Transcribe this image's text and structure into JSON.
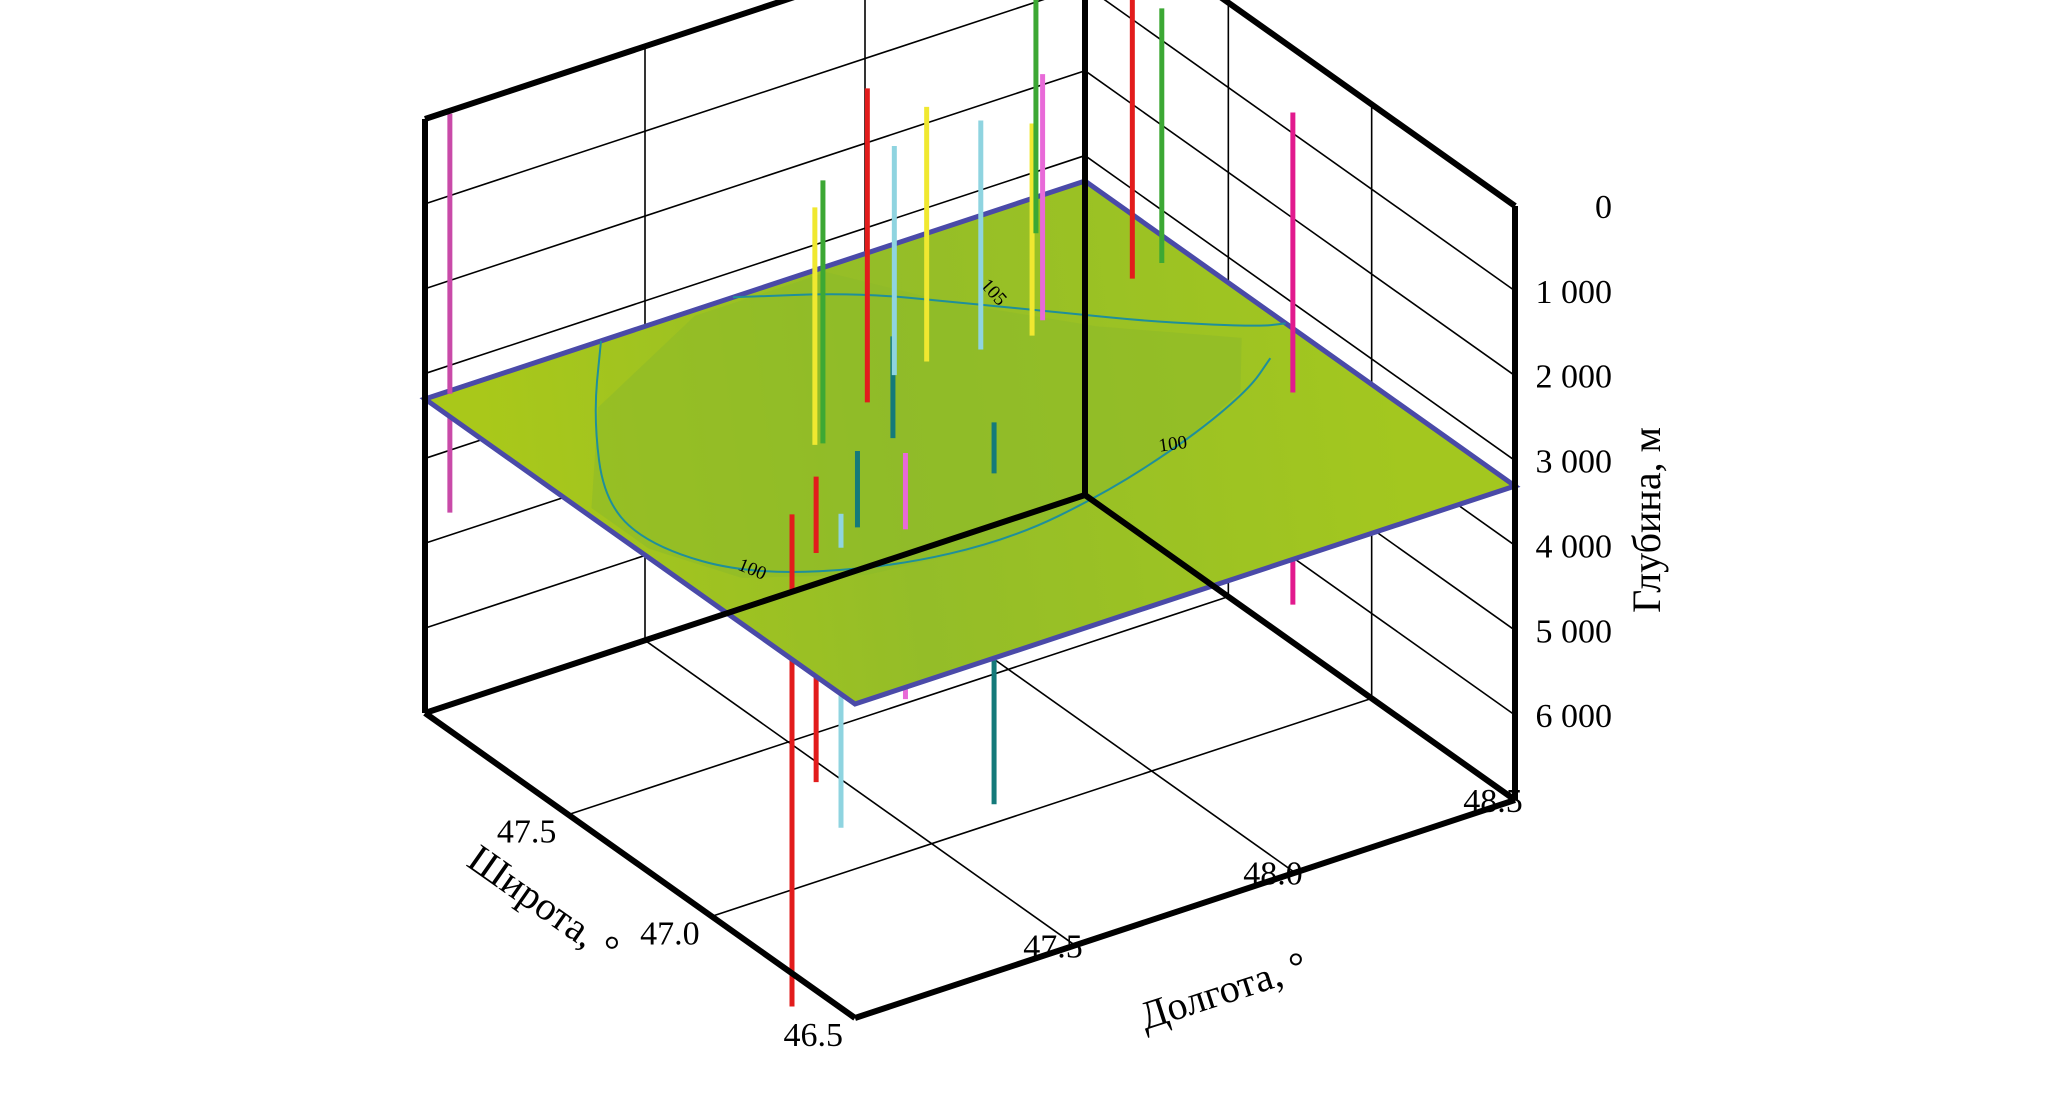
{
  "chart_data": {
    "type": "3d-surface-with-wells",
    "xlabel": "Долгота, °",
    "ylabel": "Широта, °",
    "zlabel": "Глубина, м",
    "x_ticks": [
      "47.5",
      "48.0",
      "48.5"
    ],
    "y_ticks": [
      "46.5",
      "47.0",
      "47.5"
    ],
    "z_ticks": [
      "0",
      "1 000",
      "2 000",
      "3 000",
      "4 000",
      "5 000",
      "6 000"
    ],
    "xlim": [
      47.0,
      48.5
    ],
    "ylim": [
      46.5,
      48.0
    ],
    "zlim": [
      0,
      7000
    ],
    "z_inverted": true,
    "grid": true,
    "surface": {
      "depth": 3300,
      "colors": {
        "low": "#a8c81a",
        "mid": "#8cba2a",
        "high": "#a4c81e",
        "edge": "#4a4aa8"
      },
      "contour_labels": [
        "100",
        "100",
        "105"
      ]
    },
    "wells": [
      {
        "x": 48.36,
        "y": 47.06,
        "color": "#e21a8e",
        "top": 0,
        "bottom": 5800
      },
      {
        "x": 47.15,
        "y": 46.95,
        "color": "#e21c1c",
        "top": 2400,
        "bottom": 8200
      },
      {
        "x": 47.27,
        "y": 47.05,
        "color": "#e21c1c",
        "top": 2400,
        "bottom": 6000
      },
      {
        "x": 47.32,
        "y": 47.04,
        "color": "#8fd4e0",
        "top": 2900,
        "bottom": 6600
      },
      {
        "x": 47.39,
        "y": 47.09,
        "color": "#147a7a",
        "top": 2400,
        "bottom": 5200
      },
      {
        "x": 47.46,
        "y": 47.03,
        "color": "#e86ad8",
        "top": 2400,
        "bottom": 5300
      },
      {
        "x": 47.43,
        "y": 47.3,
        "color": "#f0e830",
        "top": 100,
        "bottom": 2900
      },
      {
        "x": 47.52,
        "y": 47.41,
        "color": "#3ca834",
        "top": 200,
        "bottom": 3500
      },
      {
        "x": 47.64,
        "y": 47.35,
        "color": "#147a7a",
        "top": 2100,
        "bottom": 4100
      },
      {
        "x": 47.66,
        "y": 47.47,
        "color": "#e21c1c",
        "top": -500,
        "bottom": 3200
      },
      {
        "x": 47.72,
        "y": 47.12,
        "color": "#147a7a",
        "top": 2700,
        "bottom": 7200
      },
      {
        "x": 47.78,
        "y": 47.56,
        "color": "#8fd4e0",
        "top": 600,
        "bottom": 3300
      },
      {
        "x": 47.86,
        "y": 47.57,
        "color": "#f0e830",
        "top": 300,
        "bottom": 3400
      },
      {
        "x": 47.97,
        "y": 47.55,
        "color": "#8fd4e0",
        "top": 600,
        "bottom": 3300
      },
      {
        "x": 48.08,
        "y": 47.54,
        "color": "#f0e830",
        "top": 800,
        "bottom": 3500
      },
      {
        "x": 48.13,
        "y": 47.58,
        "color": "#e86ad8",
        "top": 400,
        "bottom": 3600
      },
      {
        "x": 48.18,
        "y": 47.68,
        "color": "#3ca834",
        "top": -900,
        "bottom": 2600
      },
      {
        "x": 48.36,
        "y": 47.62,
        "color": "#e21c1c",
        "top": -200,
        "bottom": 5100
      },
      {
        "x": 48.44,
        "y": 47.64,
        "color": "#3ca834",
        "top": 300,
        "bottom": 3400
      },
      {
        "x": 47.05,
        "y": 47.99,
        "color": "#c94aa8",
        "top": 0,
        "bottom": 4700
      }
    ]
  }
}
